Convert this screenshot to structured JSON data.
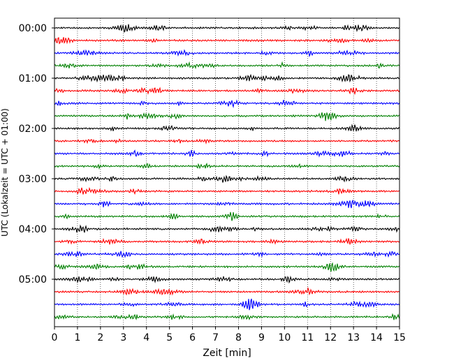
{
  "chart_data": {
    "type": "line",
    "title": "",
    "xlabel": "Zeit  [min]",
    "ylabel": "UTC (Lokalzeit = UTC + 01:00)",
    "xlim": [
      0,
      15
    ],
    "x_ticks": [
      0,
      1,
      2,
      3,
      4,
      5,
      6,
      7,
      8,
      9,
      10,
      11,
      12,
      13,
      14,
      15
    ],
    "x_tick_labels": [
      "0",
      "1",
      "2",
      "3",
      "4",
      "5",
      "6",
      "7",
      "8",
      "9",
      "10",
      "11",
      "12",
      "13",
      "14",
      "15"
    ],
    "y_tick_labels": [
      "00:00",
      "01:00",
      "02:00",
      "03:00",
      "04:00",
      "05:00"
    ],
    "trace_interval_min": 15,
    "trace_count": 24,
    "trace_colors": [
      "#000000",
      "#ff0000",
      "#0000ff",
      "#008000"
    ],
    "vertical_grid": true,
    "grid_style": "dotted"
  }
}
